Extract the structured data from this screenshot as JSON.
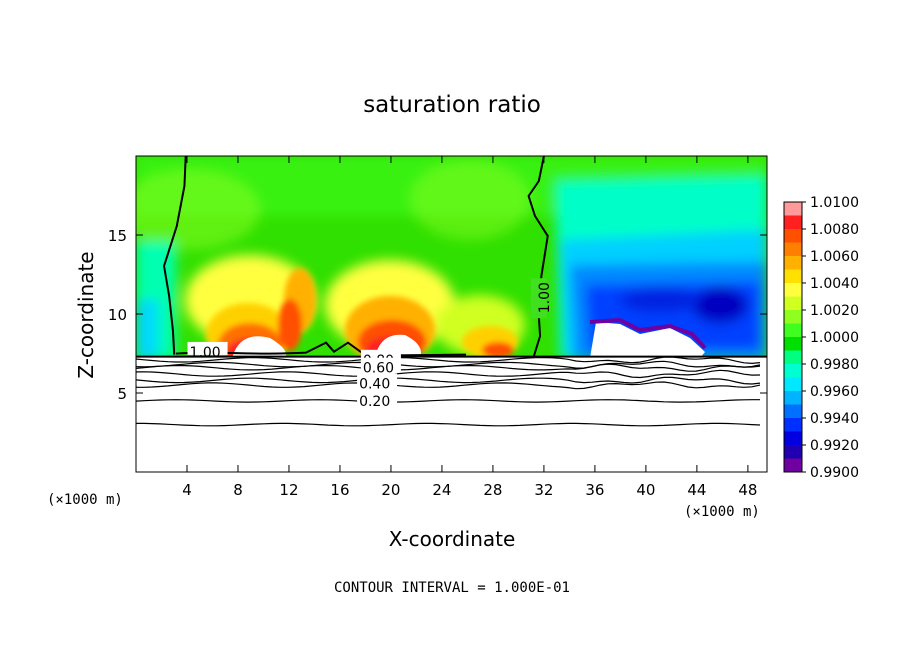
{
  "chart_data": {
    "type": "heatmap",
    "title": "saturation ratio",
    "xlabel": "X-coordinate",
    "ylabel": "Z-coordinate",
    "x_unit_label": "(×1000 m)",
    "y_unit_label": "(×1000 m)",
    "footer": "CONTOUR INTERVAL = 1.000E-01",
    "xlim": [
      0,
      49.5
    ],
    "ylim": [
      0,
      20
    ],
    "x_ticks": [
      4,
      8,
      12,
      16,
      20,
      24,
      28,
      32,
      36,
      40,
      44,
      48
    ],
    "y_ticks": [
      5,
      10,
      15
    ],
    "colorbar": {
      "range": [
        0.99,
        1.01
      ],
      "ticks": [
        "1.0100",
        "1.0080",
        "1.0060",
        "1.0040",
        "1.0020",
        "1.0000",
        "0.9980",
        "0.9960",
        "0.9940",
        "0.9920",
        "0.9900"
      ],
      "colors": [
        "#ff9a9a",
        "#ff2020",
        "#ff5000",
        "#ff8000",
        "#ffb000",
        "#ffe000",
        "#ffff40",
        "#d0ff20",
        "#90ff20",
        "#40ff20",
        "#00e000",
        "#00ff80",
        "#00ffd0",
        "#00e8ff",
        "#00b4ff",
        "#0070ff",
        "#0030ff",
        "#0000e0",
        "#2000b0",
        "#7000a0"
      ]
    },
    "contour_labels": [
      {
        "text": "1.00",
        "x": 31.6,
        "z": 11.0
      },
      {
        "text": "1.00",
        "x": 4.2,
        "z": 7.6
      },
      {
        "text": "0.80",
        "x": 17.8,
        "z": 7.1
      },
      {
        "text": "0.60",
        "x": 17.8,
        "z": 6.6
      },
      {
        "text": "0.40",
        "x": 17.5,
        "z": 5.6
      },
      {
        "text": "0.20",
        "x": 17.5,
        "z": 4.5
      }
    ],
    "low_levels": [
      {
        "z": 7.1,
        "labeled": true
      },
      {
        "z": 6.8,
        "labeled": false
      },
      {
        "z": 6.6,
        "labeled": true
      },
      {
        "z": 6.2,
        "labeled": false
      },
      {
        "z": 5.8,
        "labeled": false
      },
      {
        "z": 5.5,
        "labeled": true
      },
      {
        "z": 4.5,
        "labeled": true
      },
      {
        "z": 3.0,
        "labeled": false
      }
    ]
  }
}
